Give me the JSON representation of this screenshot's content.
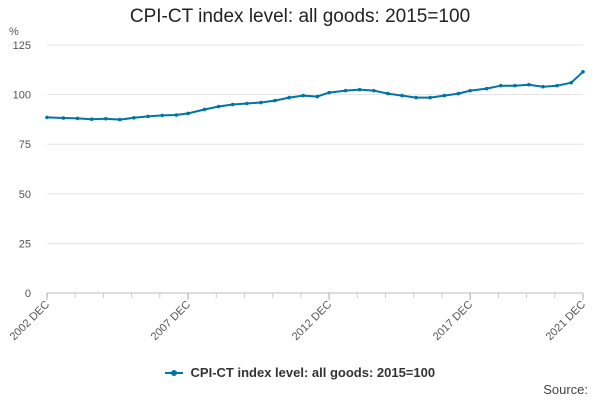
{
  "chart_data": {
    "type": "line",
    "title": "CPI-CT index level: all goods: 2015=100",
    "ylabel": "%",
    "ylim": [
      0,
      125
    ],
    "y_ticks": [
      "0",
      "25",
      "50",
      "75",
      "100",
      "125"
    ],
    "x_range": [
      2002.917,
      2021.917
    ],
    "x_ticks": [
      {
        "label": "2002 DEC",
        "x": 2002.917
      },
      {
        "label": "2007 DEC",
        "x": 2007.917
      },
      {
        "label": "2012 DEC",
        "x": 2012.917
      },
      {
        "label": "2017 DEC",
        "x": 2017.917
      },
      {
        "label": "2021 DEC",
        "x": 2021.917
      }
    ],
    "grid": "horizontal",
    "legend": "bottom",
    "series": [
      {
        "name": "CPI-CT index level: all goods: 2015=100",
        "color": "#0075A3",
        "x": [
          2002.917,
          2003.5,
          2004.0,
          2004.5,
          2005.0,
          2005.5,
          2006.0,
          2006.5,
          2007.0,
          2007.5,
          2007.917,
          2008.5,
          2009.0,
          2009.5,
          2010.0,
          2010.5,
          2011.0,
          2011.5,
          2012.0,
          2012.5,
          2012.917,
          2013.5,
          2014.0,
          2014.5,
          2015.0,
          2015.5,
          2016.0,
          2016.5,
          2017.0,
          2017.5,
          2017.917,
          2018.5,
          2019.0,
          2019.5,
          2020.0,
          2020.5,
          2021.0,
          2021.5,
          2021.917
        ],
        "values": [
          88.5,
          88.2,
          88.0,
          87.6,
          87.8,
          87.4,
          88.3,
          89.0,
          89.5,
          89.7,
          90.5,
          92.5,
          94.0,
          95.0,
          95.5,
          96.0,
          97.0,
          98.5,
          99.5,
          99.0,
          101.0,
          102.0,
          102.5,
          102.0,
          100.5,
          99.5,
          98.5,
          98.5,
          99.5,
          100.5,
          102.0,
          103.0,
          104.5,
          104.5,
          105.0,
          104.0,
          104.5,
          106.0,
          111.5
        ]
      }
    ]
  },
  "source_label": "Source:"
}
